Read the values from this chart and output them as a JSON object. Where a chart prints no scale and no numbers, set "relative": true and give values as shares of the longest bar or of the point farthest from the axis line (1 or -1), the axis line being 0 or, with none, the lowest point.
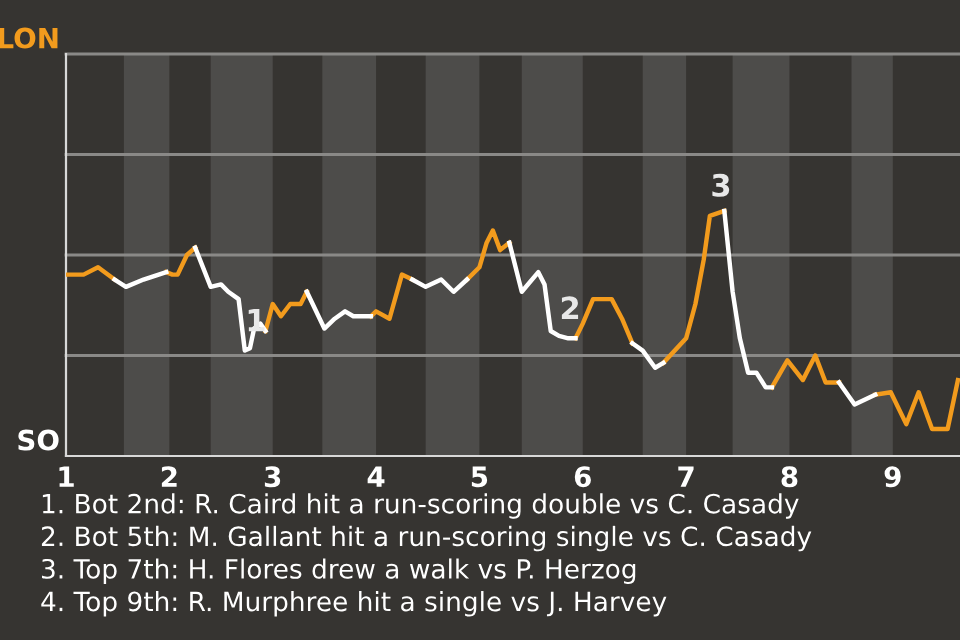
{
  "chart_data": {
    "type": "line",
    "relative": true,
    "x": [
      1.0,
      1.17,
      1.31,
      1.47,
      1.58,
      1.75,
      1.97,
      2.03,
      2.08,
      2.17,
      2.25,
      2.4,
      2.5,
      2.57,
      2.67,
      2.73,
      2.78,
      2.82,
      2.88,
      2.93,
      3.0,
      3.08,
      3.17,
      3.27,
      3.33,
      3.5,
      3.6,
      3.7,
      3.78,
      3.95,
      4.0,
      4.13,
      4.25,
      4.35,
      4.48,
      4.63,
      4.75,
      4.88,
      5.0,
      5.07,
      5.13,
      5.2,
      5.29,
      5.41,
      5.57,
      5.63,
      5.69,
      5.77,
      5.86,
      5.93,
      6.0,
      6.1,
      6.28,
      6.38,
      6.48,
      6.58,
      6.7,
      6.78,
      7.0,
      7.09,
      7.17,
      7.23,
      7.37,
      7.45,
      7.52,
      7.6,
      7.68,
      7.77,
      7.83,
      7.98,
      8.13,
      8.25,
      8.35,
      8.48,
      8.63,
      8.83,
      8.98,
      9.13,
      9.25,
      9.38,
      9.53,
      9.63
    ],
    "series": [
      {
        "color": "#f29b1d",
        "values": [
          0.74,
          0.74,
          0.77,
          0.72,
          null,
          null,
          0.75,
          0.74,
          0.74,
          0.82,
          0.85,
          null,
          null,
          null,
          null,
          null,
          null,
          null,
          null,
          0.51,
          0.62,
          0.57,
          0.62,
          0.62,
          0.67,
          null,
          null,
          null,
          null,
          0.57,
          0.59,
          0.56,
          0.74,
          0.72,
          null,
          null,
          null,
          0.72,
          0.77,
          0.87,
          0.92,
          0.84,
          0.87,
          null,
          null,
          null,
          null,
          null,
          null,
          0.48,
          0.54,
          0.64,
          0.64,
          0.56,
          0.46,
          null,
          null,
          0.38,
          0.48,
          0.62,
          0.8,
          0.98,
          1,
          null,
          null,
          null,
          null,
          null,
          0.28,
          0.39,
          0.31,
          0.41,
          0.3,
          0.3,
          null,
          0.25,
          0.26,
          0.13,
          0.26,
          0.11,
          0.11,
          0.31
        ]
      },
      {
        "color": "#ffffff",
        "values": [
          null,
          null,
          null,
          0.72,
          0.69,
          0.72,
          0.75,
          null,
          null,
          null,
          0.85,
          0.69,
          0.7,
          0.67,
          0.64,
          0.43,
          0.44,
          0.52,
          0.54,
          0.51,
          null,
          null,
          null,
          null,
          0.67,
          0.52,
          0.56,
          0.59,
          0.57,
          0.57,
          null,
          null,
          null,
          0.72,
          0.69,
          0.72,
          0.67,
          0.72,
          null,
          null,
          null,
          null,
          0.87,
          0.67,
          0.75,
          0.7,
          0.51,
          0.49,
          0.48,
          0.48,
          null,
          null,
          null,
          null,
          0.46,
          0.43,
          0.36,
          0.38,
          null,
          null,
          null,
          null,
          1,
          0.67,
          0.48,
          0.34,
          0.34,
          0.28,
          0.28,
          null,
          null,
          null,
          null,
          0.3,
          0.21,
          0.25,
          null,
          null,
          null,
          null,
          null,
          null
        ]
      }
    ],
    "xlim": [
      1,
      9.65
    ],
    "xticks": [
      1,
      2,
      3,
      4,
      5,
      6,
      7,
      8,
      9
    ],
    "ref_lines": [
      {
        "axis": "y",
        "value": 0.41,
        "color": "#8a8987"
      },
      {
        "axis": "y",
        "value": 0.82,
        "color": "#8a8987"
      },
      {
        "axis": "y",
        "value": 1.23,
        "color": "#8a8987"
      },
      {
        "axis": "y",
        "value": 1.64,
        "color": "#8a8987"
      }
    ],
    "marker": "none",
    "line_style": "solid",
    "bands": [
      {
        "axis": "x",
        "from": 1.56,
        "to": 2,
        "color": "#4d4c4a"
      },
      {
        "axis": "x",
        "from": 2.4,
        "to": 3,
        "color": "#4d4c4a"
      },
      {
        "axis": "x",
        "from": 3.48,
        "to": 4,
        "color": "#4d4c4a"
      },
      {
        "axis": "x",
        "from": 4.48,
        "to": 5,
        "color": "#4d4c4a"
      },
      {
        "axis": "x",
        "from": 5.41,
        "to": 6,
        "color": "#4d4c4a"
      },
      {
        "axis": "x",
        "from": 6.58,
        "to": 7,
        "color": "#4d4c4a"
      },
      {
        "axis": "x",
        "from": 7.45,
        "to": 8,
        "color": "#4d4c4a"
      },
      {
        "axis": "x",
        "from": 8.6,
        "to": 9,
        "color": "#4d4c4a"
      }
    ],
    "annotations": [
      "LON",
      "SO",
      {
        "text": "1",
        "x": 2.73,
        "y": 0.43
      },
      {
        "text": "2",
        "x": 5.77,
        "y": 0.48
      },
      {
        "text": "3",
        "x": 7.23,
        "y": 0.98
      },
      "1. Bot 2nd: R. Caird hit a run-scoring double vs C. Casady",
      "2. Bot 5th: M. Gallant hit a run-scoring single vs C. Casady",
      "3. Top 7th: H. Flores drew a walk vs P. Herzog",
      "4. Top 9th: R. Murphree hit a single vs J. Harvey"
    ]
  }
}
